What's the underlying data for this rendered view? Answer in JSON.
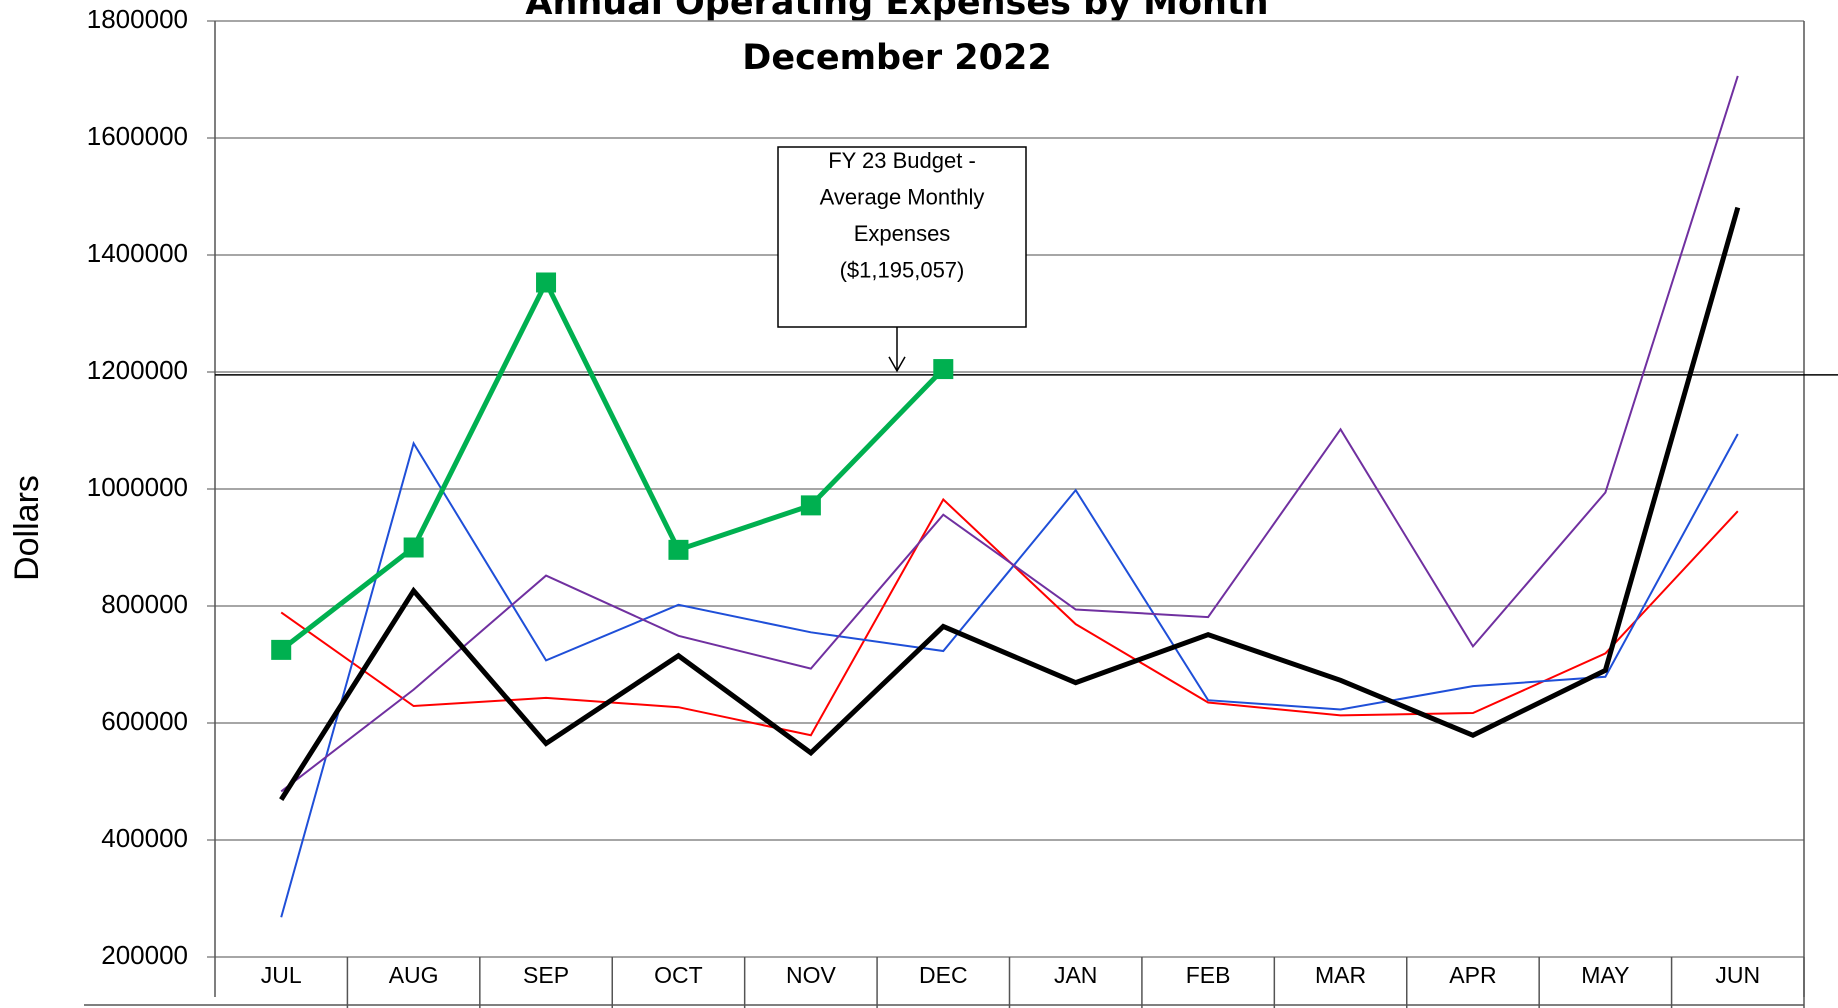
{
  "chart_data": {
    "type": "line",
    "title": "Annual Operating Expenses by Month",
    "subtitle": "December 2022",
    "y_label": "Dollars",
    "categories": [
      "JUL",
      "AUG",
      "SEP",
      "OCT",
      "NOV",
      "DEC",
      "JAN",
      "FEB",
      "MAR",
      "APR",
      "MAY",
      "JUN"
    ],
    "series": [
      {
        "color": "#ff0000",
        "width": 2,
        "values": [
          789000,
          629000,
          643000,
          627000,
          579000,
          982000,
          769000,
          635000,
          613000,
          617000,
          719000,
          962000
        ]
      },
      {
        "color": "#1f4fd8",
        "width": 2,
        "values": [
          268000,
          1078000,
          707000,
          802000,
          755000,
          723000,
          998000,
          639000,
          623000,
          663000,
          679000,
          1094000
        ]
      },
      {
        "color": "#7030a0",
        "width": 2,
        "values": [
          483000,
          657000,
          852000,
          749000,
          693000,
          956000,
          794000,
          781000,
          1102000,
          731000,
          994000,
          1706000
        ]
      },
      {
        "color": "#000000",
        "width": 5,
        "values": [
          469000,
          826000,
          565000,
          715000,
          549000,
          765000,
          669000,
          751000,
          673000,
          579000,
          690000,
          1481000
        ]
      },
      {
        "color": "#00b050",
        "width": 5,
        "marker": "square",
        "values": [
          725000,
          900000,
          1353000,
          896000,
          972000,
          1205000,
          null,
          null,
          null,
          null,
          null,
          null
        ]
      }
    ],
    "reference_line": {
      "value": 1195057,
      "color": "#000000"
    },
    "annotation": [
      "FY 23 Budget -",
      "Average Monthly",
      "Expenses",
      "($1,195,057)"
    ],
    "ylim": [
      200000,
      1800000
    ],
    "yticks": [
      200000,
      400000,
      600000,
      800000,
      1000000,
      1200000,
      1400000,
      1600000,
      1800000
    ],
    "grid": true
  }
}
